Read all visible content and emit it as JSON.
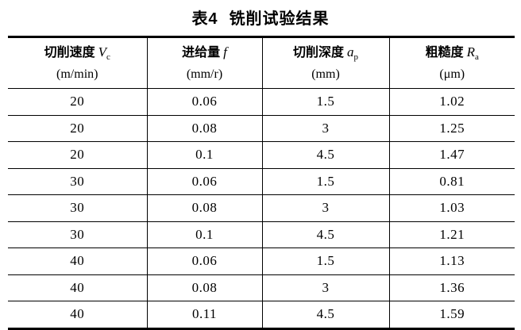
{
  "title": {
    "prefix": "表4",
    "text": "铣削试验结果"
  },
  "table": {
    "columns": [
      {
        "label": "切削速度",
        "symbol": "V",
        "subscript": "c",
        "unit": "(m/min)"
      },
      {
        "label": "进给量",
        "symbol": "f",
        "subscript": "",
        "unit": "(mm/r)"
      },
      {
        "label": "切削深度",
        "symbol": "a",
        "subscript": "p",
        "unit": "(mm)"
      },
      {
        "label": "粗糙度",
        "symbol": "R",
        "subscript": "a",
        "unit": "(μm)"
      }
    ],
    "rows": [
      [
        "20",
        "0.06",
        "1.5",
        "1.02"
      ],
      [
        "20",
        "0.08",
        "3",
        "1.25"
      ],
      [
        "20",
        "0.1",
        "4.5",
        "1.47"
      ],
      [
        "30",
        "0.06",
        "1.5",
        "0.81"
      ],
      [
        "30",
        "0.08",
        "3",
        "1.03"
      ],
      [
        "30",
        "0.1",
        "4.5",
        "1.21"
      ],
      [
        "40",
        "0.06",
        "1.5",
        "1.13"
      ],
      [
        "40",
        "0.08",
        "3",
        "1.36"
      ],
      [
        "40",
        "0.11",
        "4.5",
        "1.59"
      ]
    ]
  },
  "chart_data": {
    "type": "table",
    "title": "表4 铣削试验结果",
    "columns": [
      "切削速度 Vc (m/min)",
      "进给量 f (mm/r)",
      "切削深度 ap (mm)",
      "粗糙度 Ra (μm)"
    ],
    "rows": [
      [
        20,
        0.06,
        1.5,
        1.02
      ],
      [
        20,
        0.08,
        3,
        1.25
      ],
      [
        20,
        0.1,
        4.5,
        1.47
      ],
      [
        30,
        0.06,
        1.5,
        0.81
      ],
      [
        30,
        0.08,
        3,
        1.03
      ],
      [
        30,
        0.1,
        4.5,
        1.21
      ],
      [
        40,
        0.06,
        1.5,
        1.13
      ],
      [
        40,
        0.08,
        3,
        1.36
      ],
      [
        40,
        0.11,
        4.5,
        1.59
      ]
    ]
  }
}
